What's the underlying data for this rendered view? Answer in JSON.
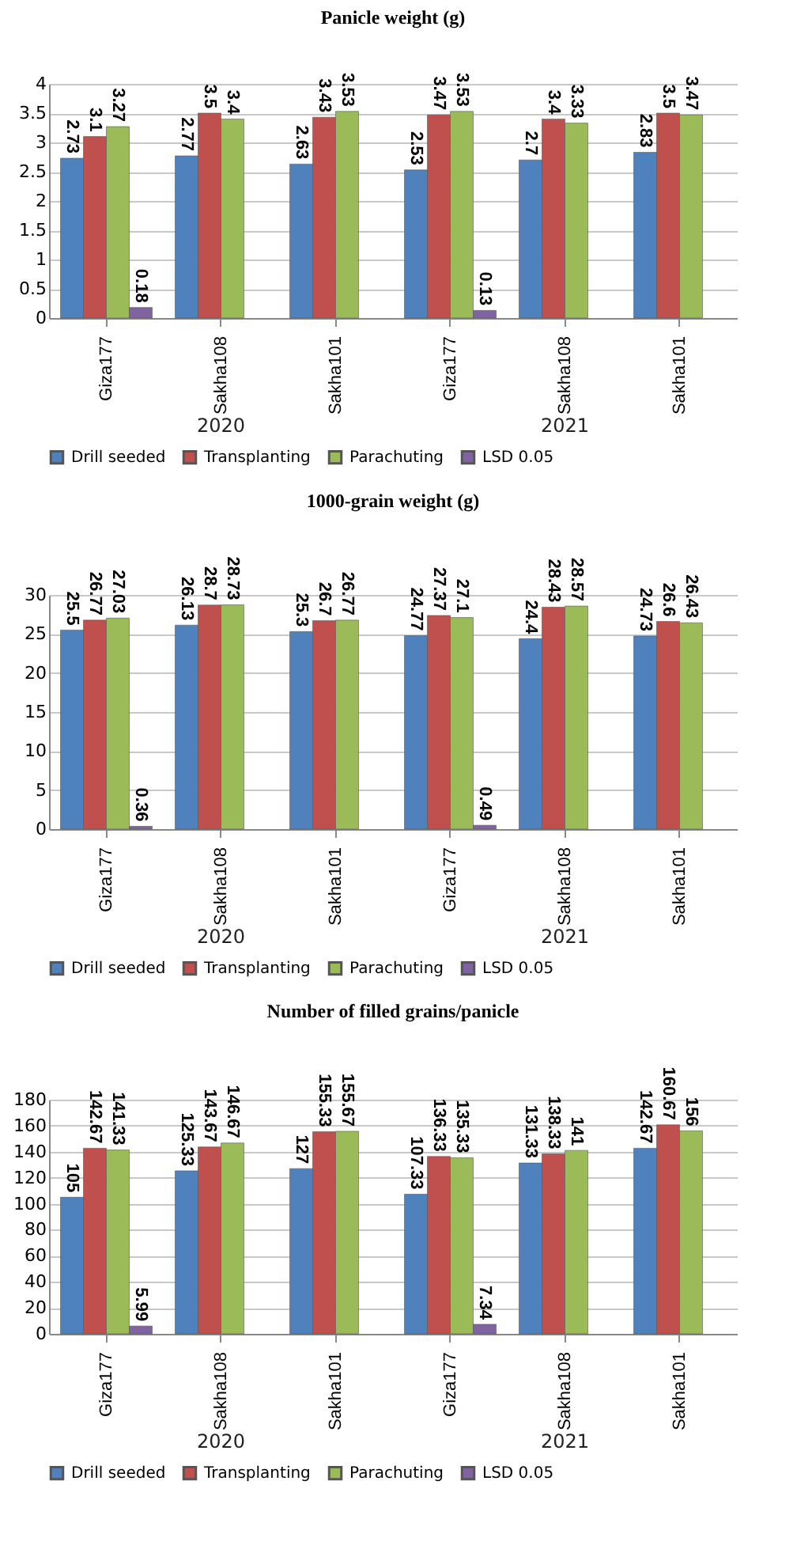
{
  "chart_data": [
    {
      "type": "bar",
      "title": "Panicle weight (g)",
      "categories": [
        "Giza177",
        "Sakha108",
        "Sakha101",
        "Giza177",
        "Sakha108",
        "Sakha101"
      ],
      "annotations": [
        "2020",
        "2021"
      ],
      "series": [
        {
          "name": "Drill seeded",
          "color": "#4f81bd",
          "values": [
            2.73,
            2.77,
            2.63,
            2.53,
            2.7,
            2.83
          ]
        },
        {
          "name": "Transplanting",
          "color": "#c0504d",
          "values": [
            3.1,
            3.5,
            3.43,
            3.47,
            3.4,
            3.5
          ]
        },
        {
          "name": "Parachuting",
          "color": "#9bbb59",
          "values": [
            3.27,
            3.4,
            3.53,
            3.53,
            3.33,
            3.47
          ]
        },
        {
          "name": "LSD 0.05",
          "color": "#8064a2",
          "values": [
            0.18,
            null,
            null,
            0.13,
            null,
            null
          ]
        }
      ],
      "ylim": [
        0,
        4
      ],
      "yticks": [
        0,
        0.5,
        1,
        1.5,
        2,
        2.5,
        3,
        3.5,
        4
      ],
      "grid": "y",
      "legend": "bottom",
      "data_labels": true
    },
    {
      "type": "bar",
      "title": "1000-grain weight (g)",
      "categories": [
        "Giza177",
        "Sakha108",
        "Sakha101",
        "Giza177",
        "Sakha108",
        "Sakha101"
      ],
      "annotations": [
        "2020",
        "2021"
      ],
      "series": [
        {
          "name": "Drill seeded",
          "color": "#4f81bd",
          "values": [
            25.5,
            26.13,
            25.3,
            24.77,
            24.4,
            24.73
          ]
        },
        {
          "name": "Transplanting",
          "color": "#c0504d",
          "values": [
            26.77,
            28.7,
            26.7,
            27.37,
            28.43,
            26.6
          ]
        },
        {
          "name": "Parachuting",
          "color": "#9bbb59",
          "values": [
            27.03,
            28.73,
            26.77,
            27.1,
            28.57,
            26.43
          ]
        },
        {
          "name": "LSD 0.05",
          "color": "#8064a2",
          "values": [
            0.36,
            null,
            null,
            0.49,
            null,
            null
          ]
        }
      ],
      "ylim": [
        0,
        30
      ],
      "yticks": [
        0,
        5,
        10,
        15,
        20,
        25,
        30
      ],
      "grid": "y",
      "legend": "bottom",
      "data_labels": true
    },
    {
      "type": "bar",
      "title": "Number of filled grains/panicle",
      "categories": [
        "Giza177",
        "Sakha108",
        "Sakha101",
        "Giza177",
        "Sakha108",
        "Sakha101"
      ],
      "annotations": [
        "2020",
        "2021"
      ],
      "series": [
        {
          "name": "Drill seeded",
          "color": "#4f81bd",
          "values": [
            105,
            125.33,
            127,
            107.33,
            131.33,
            142.67
          ]
        },
        {
          "name": "Transplanting",
          "color": "#c0504d",
          "values": [
            142.67,
            143.67,
            155.33,
            136.33,
            138.33,
            160.67
          ]
        },
        {
          "name": "Parachuting",
          "color": "#9bbb59",
          "values": [
            141.33,
            146.67,
            155.67,
            135.33,
            141,
            156
          ]
        },
        {
          "name": "LSD 0.05",
          "color": "#8064a2",
          "values": [
            5.99,
            null,
            null,
            7.34,
            null,
            null
          ]
        }
      ],
      "ylim": [
        0,
        180
      ],
      "yticks": [
        0,
        20,
        40,
        60,
        80,
        100,
        120,
        140,
        160,
        180
      ],
      "grid": "y",
      "legend": "bottom",
      "data_labels": true
    }
  ]
}
